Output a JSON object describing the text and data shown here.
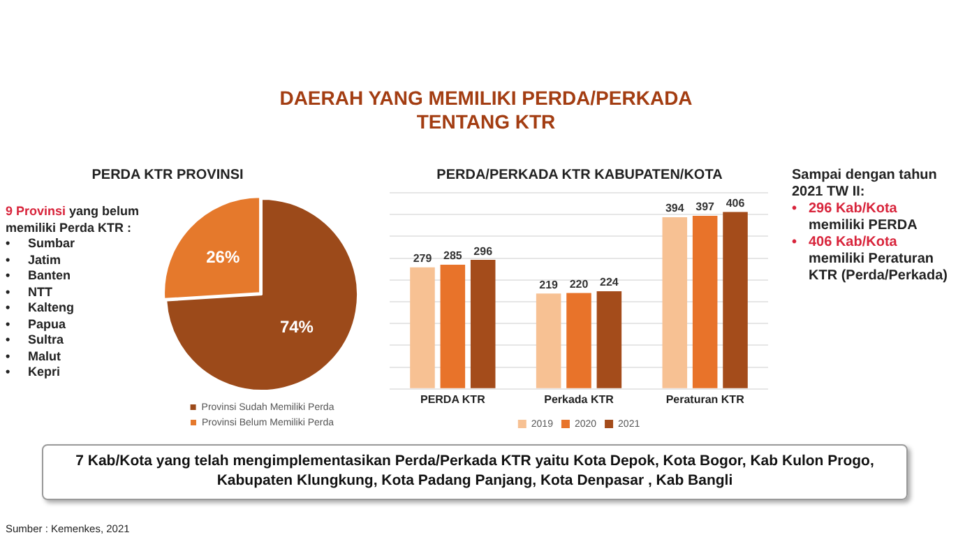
{
  "chart_data": [
    {
      "type": "other",
      "title": "DAERAH YANG MEMILIKI PERDA/PERKADA TENTANG KTR",
      "annotations": [
        "7 Kab/Kota yang telah mengimplementasikan Perda/Perkada KTR yaitu Kota Depok, Kota Bogor, Kab Kulon Progo, Kabupaten Klungkung, Kota Padang Panjang, Kota Denpasar , Kab Bangli",
        "Sumber : Kemenkes, 2021"
      ]
    },
    {
      "type": "pie",
      "title": "PERDA KTR PROVINSI",
      "categories": [
        "Provinsi Sudah Memiliki Perda",
        "Provinsi Belum Memiliki Perda"
      ],
      "values": [
        74,
        26
      ],
      "value_labels": [
        "74%",
        "26%"
      ],
      "colors": [
        "#9c4a1a",
        "#e5792c"
      ],
      "legend": "bottom",
      "annotations": [
        "9 Provinsi",
        "yang belum memiliki Perda KTR :",
        "•",
        "Sumbar",
        "•",
        "Jatim",
        "•",
        "Banten",
        "•",
        "NTT",
        "•",
        "Kalteng",
        "•",
        "Papua",
        "•",
        "Sultra",
        "•",
        "Malut",
        "•",
        "Kepri"
      ]
    },
    {
      "type": "bar",
      "title": "PERDA/PERKADA KTR KABUPATEN/KOTA",
      "categories": [
        "PERDA KTR",
        "Perkada KTR",
        "Peraturan KTR"
      ],
      "series": [
        {
          "name": "2019",
          "color": "#f7c193",
          "values": [
            279,
            219,
            394
          ]
        },
        {
          "name": "2020",
          "color": "#e8732a",
          "values": [
            285,
            220,
            397
          ]
        },
        {
          "name": "2021",
          "color": "#a44c1b",
          "values": [
            296,
            224,
            406
          ]
        }
      ],
      "ylim": [
        0,
        450
      ],
      "yticks": [
        {
          "value": 0,
          "label": null
        },
        {
          "value": 50,
          "label": null
        },
        {
          "value": 100,
          "label": null
        },
        {
          "value": 150,
          "label": null
        },
        {
          "value": 200,
          "label": null
        },
        {
          "value": 250,
          "label": null
        },
        {
          "value": 300,
          "label": null
        },
        {
          "value": 350,
          "label": null
        },
        {
          "value": 400,
          "label": null
        },
        {
          "value": 450,
          "label": null
        }
      ],
      "tick_labels": "x",
      "grid": "y",
      "legend": "bottom",
      "data_labels": true,
      "annotations": [
        "Sampai dengan tahun 2021 TW II:",
        "•",
        "296 Kab/Kota",
        "memiliki PERDA",
        "•",
        "406 Kab/Kota",
        "memiliki Peraturan KTR (Perda/Perkada)"
      ]
    }
  ]
}
